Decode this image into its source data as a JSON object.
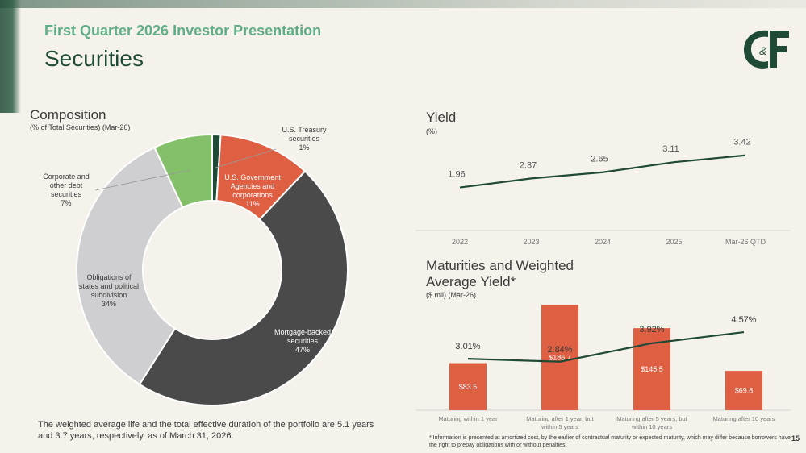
{
  "header": {
    "subtitle": "First Quarter 2026 Investor Presentation",
    "title": "Securities"
  },
  "brand": {
    "green": "#1f4a36",
    "light_green": "#5fae86",
    "orange": "#df5f43",
    "dark_gray": "#4a4a4a",
    "light_gray": "#cfcfd1",
    "pale_green": "#84c06a"
  },
  "logo": {
    "text": "C&F"
  },
  "composition": {
    "title": "Composition",
    "subtitle": "(% of Total Securities) (Mar-26)"
  },
  "yield": {
    "title": "Yield",
    "subtitle": "(%)"
  },
  "maturities": {
    "title_line1": "Maturities and Weighted",
    "title_line2": "Average Yield*",
    "subtitle": "($ mil) (Mar-26)"
  },
  "note": "The weighted average life and the total effective duration of the portfolio are 5.1 years and 3.7 years, respectively, as of March 31, 2026.",
  "footnote": "* Information is presented at amortized cost, by the earlier of contractual maturity or expected maturity, which may differ because borrowers have the right to prepay obligations with or without penalties.",
  "page_number": "15",
  "chart_data": [
    {
      "type": "pie",
      "donut": true,
      "title": "Composition",
      "subtitle": "(% of Total Securities) (Mar-26)",
      "slices": [
        {
          "label": [
            "U.S. Treasury",
            "securities",
            "1%"
          ],
          "value": 1,
          "color": "#1f4a36"
        },
        {
          "label": [
            "U.S. Government",
            "Agencies and",
            "corporations",
            "11%"
          ],
          "value": 11,
          "color": "#df5f43"
        },
        {
          "label": [
            "Mortgage-backed",
            "securities",
            "47%"
          ],
          "value": 47,
          "color": "#4a4a4a"
        },
        {
          "label": [
            "Obligations of",
            "states and political",
            "subdivision",
            "34%"
          ],
          "value": 34,
          "color": "#cfcfd1"
        },
        {
          "label": [
            "Corporate and",
            "other debt",
            "securities",
            "7%"
          ],
          "value": 7,
          "color": "#84c06a"
        }
      ]
    },
    {
      "type": "line",
      "title": "Yield",
      "ylabel": "(%)",
      "categories": [
        "2022",
        "2023",
        "2024",
        "2025",
        "Mar-26 QTD"
      ],
      "values": [
        1.96,
        2.37,
        2.65,
        3.11,
        3.42
      ],
      "value_labels": [
        "1.96",
        "2.37",
        "2.65",
        "3.11",
        "3.42"
      ],
      "ylim": [
        0,
        4.4
      ],
      "color": "#1f4a36"
    },
    {
      "type": "bar",
      "title": "Maturities and Weighted Average Yield*",
      "subtitle": "($ mil) (Mar-26)",
      "categories": [
        [
          "Maturing within 1 year"
        ],
        [
          "Maturing after 1 year, but",
          "within 5 years"
        ],
        [
          "Maturing after 5 years, but",
          "within 10 years"
        ],
        [
          "Maturing after 10 years"
        ]
      ],
      "bar_values": [
        83.5,
        186.7,
        145.5,
        69.8
      ],
      "bar_labels": [
        "$83.5",
        "$186.7",
        "$145.5",
        "$69.8"
      ],
      "bar_color": "#df5f43",
      "bar_ylim": [
        0,
        200
      ],
      "line_values": [
        3.01,
        2.84,
        3.92,
        4.57
      ],
      "line_labels": [
        "3.01%",
        "2.84%",
        "3.92%",
        "4.57%"
      ],
      "line_ylim": [
        0,
        6.6
      ],
      "line_color": "#1f4a36"
    }
  ]
}
